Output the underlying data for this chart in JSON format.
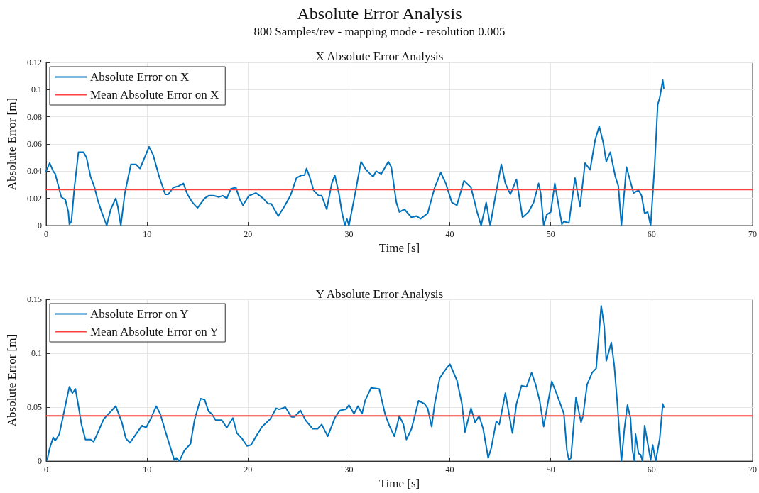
{
  "chart_data": [
    {
      "type": "line",
      "title": "X Absolute Error Analysis",
      "annotations": [
        "Absolute Error Analysis",
        "800 Samples/rev - mapping mode - resolution 0.005"
      ],
      "xlabel": "Time [s]",
      "ylabel": "Absolute Error [m]",
      "xlim": [
        0,
        70
      ],
      "xticks": [
        0,
        10,
        20,
        30,
        40,
        50,
        60,
        70
      ],
      "ylim": [
        0,
        0.12
      ],
      "yticks": [
        0,
        0.02,
        0.04,
        0.06,
        0.08,
        0.1,
        0.12
      ],
      "grid": true,
      "legend": "top left",
      "series": [
        {
          "name": "Absolute Error on X",
          "color": "#0072bd",
          "x": [
            0,
            0.35,
            0.7,
            0.9,
            1.5,
            1.9,
            2.2,
            2.3,
            2.5,
            2.8,
            3.2,
            3.7,
            4.0,
            4.4,
            4.8,
            5.1,
            5.5,
            6.0,
            6.4,
            6.9,
            7.1,
            7.4,
            7.8,
            8.4,
            8.9,
            9.3,
            9.7,
            10.2,
            10.6,
            11.2,
            11.8,
            12.1,
            12.6,
            13.1,
            13.6,
            14.0,
            14.5,
            15.0,
            15.7,
            16.1,
            16.6,
            17.1,
            17.5,
            17.9,
            18.3,
            18.8,
            19.2,
            19.5,
            20.1,
            20.8,
            21.5,
            22.0,
            22.3,
            23.0,
            23.6,
            24.2,
            24.8,
            25.3,
            25.6,
            25.8,
            26.1,
            26.5,
            27.0,
            27.3,
            27.8,
            28.3,
            28.6,
            29.0,
            29.3,
            29.6,
            29.8,
            30.0,
            30.5,
            31.2,
            31.7,
            32.1,
            32.4,
            32.7,
            33.2,
            33.9,
            34.2,
            34.7,
            35.0,
            35.5,
            36.2,
            36.7,
            37.1,
            37.8,
            38.5,
            39.1,
            39.6,
            40.2,
            40.7,
            41.4,
            42.1,
            42.7,
            43.1,
            43.6,
            44.0,
            44.5,
            45.1,
            45.5,
            46.0,
            46.6,
            47.2,
            47.8,
            48.3,
            48.8,
            49.0,
            49.3,
            49.6,
            50.0,
            50.4,
            50.8,
            51.1,
            51.3,
            51.8,
            52.4,
            52.9,
            53.4,
            53.9,
            54.4,
            54.8,
            55.2,
            55.5,
            55.9,
            56.4,
            56.7,
            57.0,
            57.5,
            58.2,
            58.7,
            59.0,
            59.3,
            59.6,
            59.9,
            60.3,
            60.6,
            60.8,
            61.1,
            61.2
          ],
          "values": [
            0.04,
            0.046,
            0.04,
            0.038,
            0.021,
            0.019,
            0.01,
            0.001,
            0.003,
            0.028,
            0.054,
            0.054,
            0.05,
            0.036,
            0.028,
            0.019,
            0.01,
            0,
            0.012,
            0.02,
            0.014,
            0,
            0.024,
            0.045,
            0.045,
            0.042,
            0.049,
            0.058,
            0.052,
            0.036,
            0.023,
            0.023,
            0.028,
            0.029,
            0.031,
            0.023,
            0.017,
            0.013,
            0.02,
            0.022,
            0.022,
            0.021,
            0.022,
            0.02,
            0.027,
            0.028,
            0.019,
            0.015,
            0.022,
            0.024,
            0.02,
            0.016,
            0.016,
            0.007,
            0.014,
            0.022,
            0.035,
            0.037,
            0.037,
            0.042,
            0.036,
            0.026,
            0.022,
            0.022,
            0.012,
            0.031,
            0.037,
            0.024,
            0.01,
            0,
            0.005,
            0,
            0.019,
            0.047,
            0.041,
            0.038,
            0.036,
            0.04,
            0.038,
            0.047,
            0.043,
            0.017,
            0.01,
            0.012,
            0.006,
            0.007,
            0.005,
            0.009,
            0.028,
            0.039,
            0.031,
            0.017,
            0.015,
            0.033,
            0.028,
            0.01,
            0,
            0.017,
            0,
            0.021,
            0.045,
            0.031,
            0.023,
            0.034,
            0.006,
            0.01,
            0.017,
            0.031,
            0.024,
            0,
            0.008,
            0.01,
            0.031,
            0.014,
            0.001,
            0.003,
            0.002,
            0.035,
            0.014,
            0.046,
            0.041,
            0.063,
            0.073,
            0.061,
            0.047,
            0.054,
            0.036,
            0.029,
            0,
            0.043,
            0.024,
            0.026,
            0.022,
            0.009,
            0.01,
            0,
            0.045,
            0.089,
            0.094,
            0.107,
            0.101
          ]
        },
        {
          "name": "Mean Absolute Error on X",
          "color": "#ff4040",
          "x": [
            0,
            70
          ],
          "values": [
            0.0265,
            0.0265
          ]
        }
      ]
    },
    {
      "type": "line",
      "title": "Y Absolute Error Analysis",
      "xlabel": "Time [s]",
      "ylabel": "Absolute Error [m]",
      "xlim": [
        0,
        70
      ],
      "xticks": [
        0,
        10,
        20,
        30,
        40,
        50,
        60,
        70
      ],
      "ylim": [
        0,
        0.15
      ],
      "yticks": [
        0,
        0.05,
        0.1,
        0.15
      ],
      "grid": true,
      "legend": "top left",
      "series": [
        {
          "name": "Absolute Error on Y",
          "color": "#0072bd",
          "x": [
            0.1,
            0.35,
            0.7,
            0.9,
            1.3,
            1.6,
            2.0,
            2.3,
            2.6,
            2.9,
            3.2,
            3.5,
            3.9,
            4.4,
            4.7,
            5.1,
            5.7,
            6.3,
            6.9,
            7.5,
            7.9,
            8.3,
            8.9,
            9.5,
            9.9,
            10.4,
            10.9,
            11.3,
            11.9,
            12.4,
            12.7,
            12.9,
            13.2,
            13.7,
            14.3,
            14.7,
            15.3,
            15.7,
            16.1,
            16.4,
            16.8,
            17.4,
            17.9,
            18.5,
            18.9,
            19.4,
            19.9,
            20.3,
            20.8,
            21.4,
            22.2,
            22.8,
            23.1,
            23.7,
            24.3,
            24.6,
            25.2,
            25.7,
            26.4,
            26.9,
            27.3,
            27.9,
            28.6,
            29.1,
            29.7,
            30.0,
            30.5,
            30.9,
            31.3,
            31.6,
            32.2,
            33.0,
            33.6,
            34.0,
            34.5,
            35.0,
            35.4,
            35.7,
            36.2,
            36.9,
            37.5,
            37.8,
            38.2,
            38.5,
            39.0,
            39.5,
            40.0,
            40.7,
            41.2,
            41.5,
            42.1,
            42.5,
            42.9,
            43.3,
            43.8,
            44.1,
            44.6,
            44.9,
            45.5,
            46.2,
            46.6,
            47.1,
            47.6,
            48.1,
            48.5,
            48.9,
            49.3,
            50.1,
            50.6,
            51.3,
            51.6,
            51.8,
            52.0,
            52.5,
            53.0,
            53.2,
            53.6,
            54.1,
            54.5,
            55.0,
            55.3,
            55.5,
            56.0,
            56.3,
            56.6,
            57.0,
            57.3,
            57.6,
            57.9,
            58.1,
            58.3,
            58.4,
            58.7,
            58.9,
            59.1,
            59.3,
            59.6,
            59.9,
            60.1,
            60.4,
            60.8,
            61.1,
            61.2
          ],
          "values": [
            0.001,
            0.012,
            0.022,
            0.019,
            0.025,
            0.038,
            0.056,
            0.069,
            0.063,
            0.067,
            0.051,
            0.034,
            0.02,
            0.02,
            0.018,
            0.026,
            0.039,
            0.045,
            0.051,
            0.036,
            0.021,
            0.017,
            0.025,
            0.033,
            0.031,
            0.04,
            0.051,
            0.044,
            0.025,
            0.01,
            0.001,
            0.003,
            0,
            0.01,
            0.016,
            0.038,
            0.058,
            0.057,
            0.046,
            0.044,
            0.038,
            0.038,
            0.031,
            0.04,
            0.026,
            0.021,
            0.014,
            0.015,
            0.023,
            0.032,
            0.039,
            0.049,
            0.048,
            0.05,
            0.041,
            0.041,
            0.047,
            0.038,
            0.03,
            0.03,
            0.034,
            0.023,
            0.04,
            0.047,
            0.048,
            0.052,
            0.044,
            0.051,
            0.044,
            0.056,
            0.068,
            0.067,
            0.043,
            0.033,
            0.023,
            0.042,
            0.034,
            0.02,
            0.03,
            0.056,
            0.053,
            0.049,
            0.032,
            0.053,
            0.077,
            0.084,
            0.09,
            0.075,
            0.053,
            0.027,
            0.049,
            0.036,
            0.042,
            0.03,
            0.003,
            0.012,
            0.037,
            0.034,
            0.063,
            0.026,
            0.053,
            0.07,
            0.069,
            0.082,
            0.071,
            0.056,
            0.032,
            0.074,
            0.062,
            0.044,
            0.01,
            0.001,
            0.003,
            0.059,
            0.036,
            0.042,
            0.071,
            0.082,
            0.086,
            0.144,
            0.125,
            0.093,
            0.11,
            0.088,
            0.053,
            0,
            0.03,
            0.052,
            0.04,
            0.01,
            0,
            0.025,
            0.007,
            0.006,
            0,
            0.033,
            0.017,
            0.001,
            0.015,
            0,
            0.021,
            0.053,
            0.05
          ]
        },
        {
          "name": "Mean Absolute Error on Y",
          "color": "#ff4040",
          "x": [
            0,
            70
          ],
          "values": [
            0.042,
            0.042
          ]
        }
      ]
    }
  ]
}
